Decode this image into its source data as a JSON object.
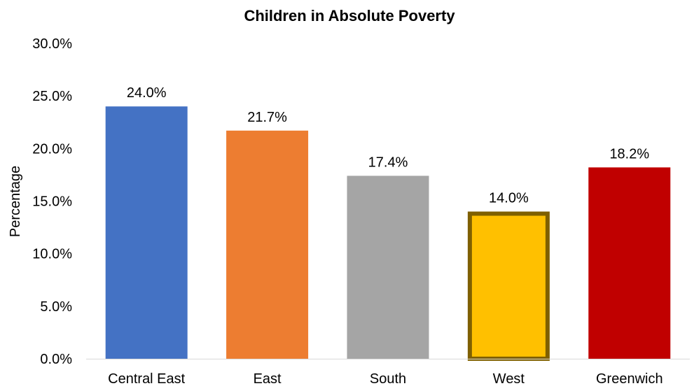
{
  "chart_data": {
    "type": "bar",
    "title": "Children in Absolute Poverty",
    "xlabel": "",
    "ylabel": "Percentage",
    "categories": [
      "Central East",
      "East",
      "South",
      "West",
      "Greenwich"
    ],
    "values": [
      24.0,
      21.7,
      17.4,
      14.0,
      18.2
    ],
    "value_labels": [
      "24.0%",
      "21.7%",
      "17.4%",
      "14.0%",
      "18.2%"
    ],
    "colors": [
      "#4472C4",
      "#ED7D31",
      "#A5A5A5",
      "#FFC000",
      "#C00000"
    ],
    "highlight": {
      "category": "West",
      "outline_color": "#7F6000"
    },
    "ylim": [
      0,
      30
    ],
    "yticks": [
      0,
      5,
      10,
      15,
      20,
      25,
      30
    ],
    "ytick_labels": [
      "0.0%",
      "5.0%",
      "10.0%",
      "15.0%",
      "20.0%",
      "25.0%",
      "30.0%"
    ],
    "grid": false,
    "legend": false
  }
}
